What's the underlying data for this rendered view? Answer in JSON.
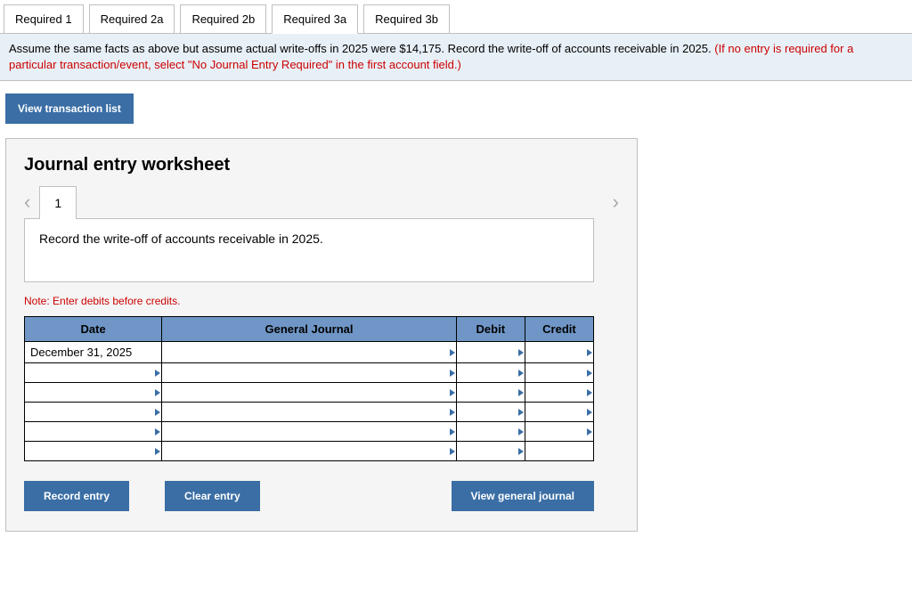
{
  "tabs": [
    {
      "label": "Required 1",
      "active": false
    },
    {
      "label": "Required 2a",
      "active": false
    },
    {
      "label": "Required 2b",
      "active": false
    },
    {
      "label": "Required 3a",
      "active": true
    },
    {
      "label": "Required 3b",
      "active": false
    }
  ],
  "instruction": {
    "main": "Assume the same facts as above but assume actual write-offs in 2025 were $14,175. Record the write-off of accounts receivable in 2025. ",
    "red": "(If no entry is required for a particular transaction/event, select \"No Journal Entry Required\" in the first account field.)"
  },
  "view_transaction_list": "View transaction list",
  "worksheet": {
    "title": "Journal entry worksheet",
    "current_step": "1",
    "description": "Record the write-off of accounts receivable in 2025.",
    "note": "Note: Enter debits before credits.",
    "columns": {
      "date": "Date",
      "general_journal": "General Journal",
      "debit": "Debit",
      "credit": "Credit"
    },
    "rows": [
      {
        "date": "December 31, 2025",
        "gj": "",
        "debit": "",
        "credit": ""
      },
      {
        "date": "",
        "gj": "",
        "debit": "",
        "credit": ""
      },
      {
        "date": "",
        "gj": "",
        "debit": "",
        "credit": ""
      },
      {
        "date": "",
        "gj": "",
        "debit": "",
        "credit": ""
      },
      {
        "date": "",
        "gj": "",
        "debit": "",
        "credit": ""
      },
      {
        "date": "",
        "gj": "",
        "debit": "",
        "credit": ""
      }
    ],
    "buttons": {
      "record": "Record entry",
      "clear": "Clear entry",
      "view": "View general journal"
    }
  },
  "colors": {
    "tab_border": "#bfbfbf",
    "instruction_bg": "#e8f0f7",
    "primary_btn": "#3a6ea5",
    "th_bg": "#6f96c6",
    "worksheet_bg": "#f5f5f5",
    "red": "#cc0000"
  }
}
